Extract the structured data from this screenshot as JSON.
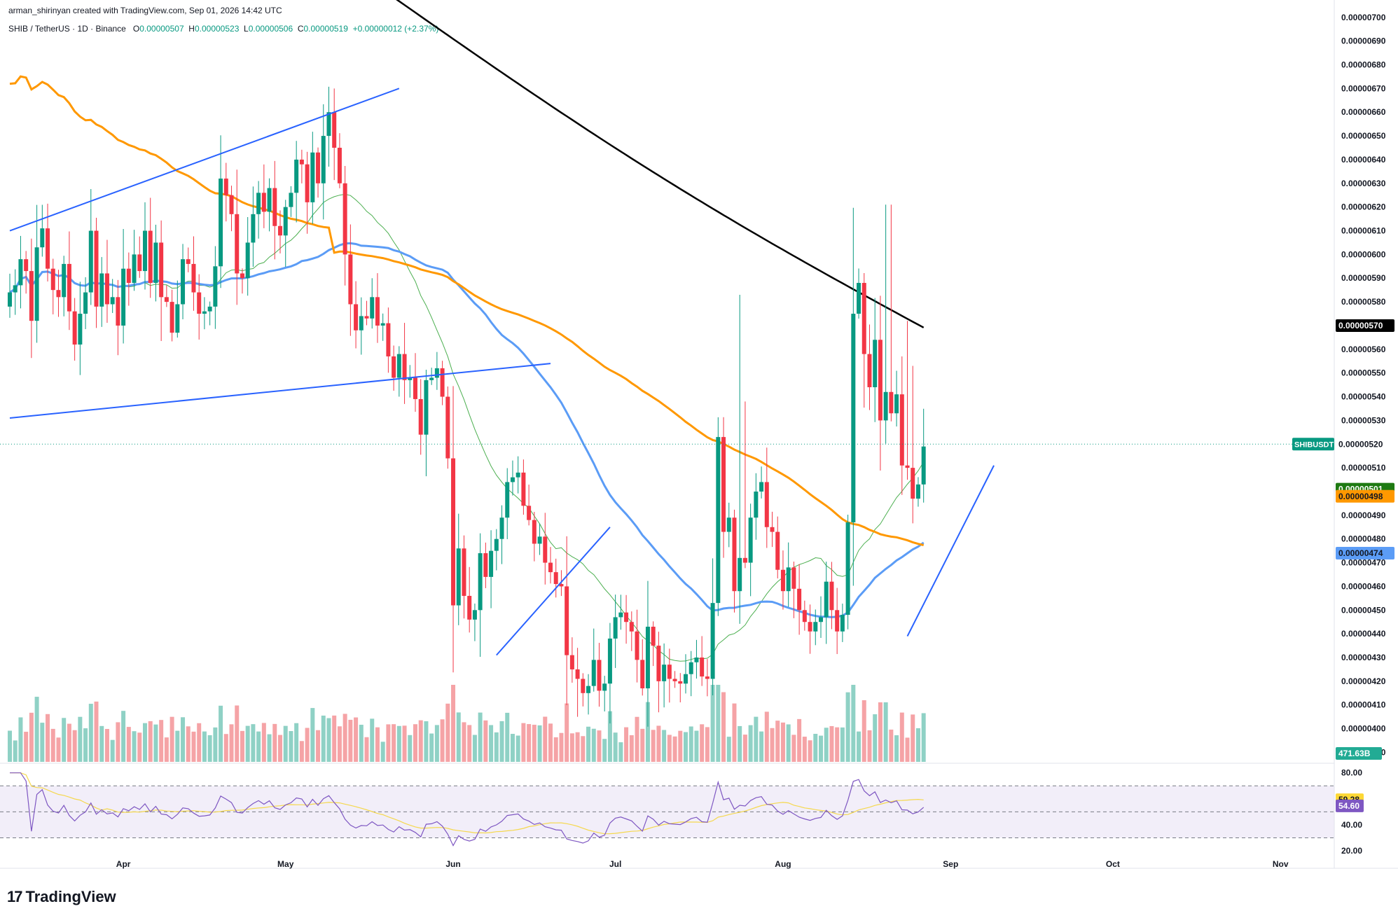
{
  "header": {
    "creator_line": "arman_shirinyan created with TradingView.com, Sep 01, 2026 14:42 UTC",
    "symbol_line": "SHIB / TetherUS · 1D · Binance",
    "ohlc": {
      "open_label": "O",
      "open": "0.00000507",
      "high_label": "H",
      "high": "0.00000523",
      "low_label": "L",
      "low": "0.00000506",
      "close_label": "C",
      "close": "0.00000519",
      "change": "+0.00000012 (+2.37%)"
    }
  },
  "branding": {
    "logo_text": "TradingView",
    "logo_mark": "17"
  },
  "chart_data": {
    "type": "candlestick",
    "symbol": "SHIB / TetherUS",
    "interval": "1D",
    "exchange": "Binance",
    "price_ylim": [
      3.86e-06,
      7.02e-06
    ],
    "price_ticks": [
      "0.00000700",
      "0.00000690",
      "0.00000680",
      "0.00000670",
      "0.00000660",
      "0.00000650",
      "0.00000640",
      "0.00000630",
      "0.00000620",
      "0.00000610",
      "0.00000600",
      "0.00000590",
      "0.00000580",
      "0.00000560",
      "0.00000550",
      "0.00000540",
      "0.00000530",
      "0.00000510",
      "0.00000490",
      "0.00000480",
      "0.00000470",
      "0.00000460",
      "0.00000450",
      "0.00000440",
      "0.00000430",
      "0.00000420",
      "0.00000410",
      "0.00000400",
      "0.00000390"
    ],
    "price_tick_values": [
      700,
      690,
      680,
      670,
      660,
      650,
      640,
      630,
      620,
      610,
      600,
      590,
      580,
      560,
      550,
      540,
      530,
      510,
      490,
      480,
      470,
      460,
      450,
      440,
      430,
      420,
      410,
      400,
      390
    ],
    "x_labels": [
      {
        "text": "Apr",
        "day": 21
      },
      {
        "text": "May",
        "day": 51
      },
      {
        "text": "Jun",
        "day": 82
      },
      {
        "text": "Jul",
        "day": 112
      },
      {
        "text": "Aug",
        "day": 143
      },
      {
        "text": "Sep",
        "day": 174
      },
      {
        "text": "Oct",
        "day": 204
      },
      {
        "text": "Nov",
        "day": 235
      }
    ],
    "close_series": [
      584,
      587,
      598,
      593,
      572,
      603,
      611,
      594,
      585,
      582,
      596,
      576,
      562,
      575,
      584,
      610,
      578,
      592,
      579,
      582,
      570,
      594,
      588,
      600,
      593,
      610,
      588,
      605,
      582,
      580,
      567,
      579,
      598,
      596,
      584,
      575,
      576,
      578,
      595,
      632,
      625,
      617,
      592,
      590,
      605,
      617,
      626,
      618,
      628,
      612,
      608,
      620,
      626,
      640,
      638,
      622,
      643,
      630,
      650,
      660,
      645,
      630,
      600,
      579,
      568,
      574,
      573,
      582,
      570,
      571,
      557,
      548,
      558,
      547,
      548,
      539,
      524,
      547,
      548,
      552,
      540,
      514,
      452,
      476,
      456,
      446,
      450,
      474,
      464,
      475,
      480,
      489,
      504,
      506,
      508,
      494,
      488,
      478,
      481,
      470,
      466,
      461,
      460,
      431,
      425,
      421,
      415,
      418,
      429,
      416,
      419,
      438,
      447,
      449,
      445,
      441,
      429,
      417,
      443,
      435,
      420,
      427,
      421,
      420,
      419,
      423,
      428,
      430,
      422,
      421,
      453,
      523,
      483,
      489,
      458,
      472,
      470,
      489,
      500,
      504,
      485,
      483,
      467,
      458,
      468,
      459,
      450,
      445,
      441,
      445,
      447,
      462,
      450,
      441,
      448,
      487,
      575,
      588,
      558,
      544,
      564,
      530,
      542,
      533,
      541,
      511,
      510,
      497,
      503,
      519
    ],
    "sma_black": {
      "name": "",
      "color": "#000000",
      "last": "0.00000570"
    },
    "sma_orange": {
      "name": "",
      "color": "#ff9800",
      "last": "0.00000498"
    },
    "sma_blue": {
      "name": "",
      "color": "#5b9cf6",
      "last": "0.00000474"
    },
    "sma_green": {
      "name": "",
      "color": "#4caf50",
      "last": "0.00000501"
    },
    "price_tag": {
      "label": "SHIBUSDT",
      "value": "0.00000520"
    },
    "volume": {
      "last_label": "471.63B"
    },
    "rsi": {
      "ylim": [
        20,
        82
      ],
      "ticks": [
        "80.00",
        "40.00",
        "20.00"
      ],
      "tick_values": [
        80,
        40,
        20
      ],
      "upper_band": 70,
      "mid_band": 50,
      "lower_band": 30,
      "rsi_last": "54.60",
      "ma_last": "59.28"
    },
    "trendlines": [
      {
        "from": {
          "day": 0,
          "price": 610
        },
        "to": {
          "day": 72,
          "price": 670
        }
      },
      {
        "from": {
          "day": 0,
          "price": 531
        },
        "to": {
          "day": 100,
          "price": 554
        }
      },
      {
        "from": {
          "day": 90,
          "price": 431
        },
        "to": {
          "day": 111,
          "price": 485
        }
      },
      {
        "from": {
          "day": 166,
          "price": 439
        },
        "to": {
          "day": 182,
          "price": 511
        }
      }
    ]
  }
}
